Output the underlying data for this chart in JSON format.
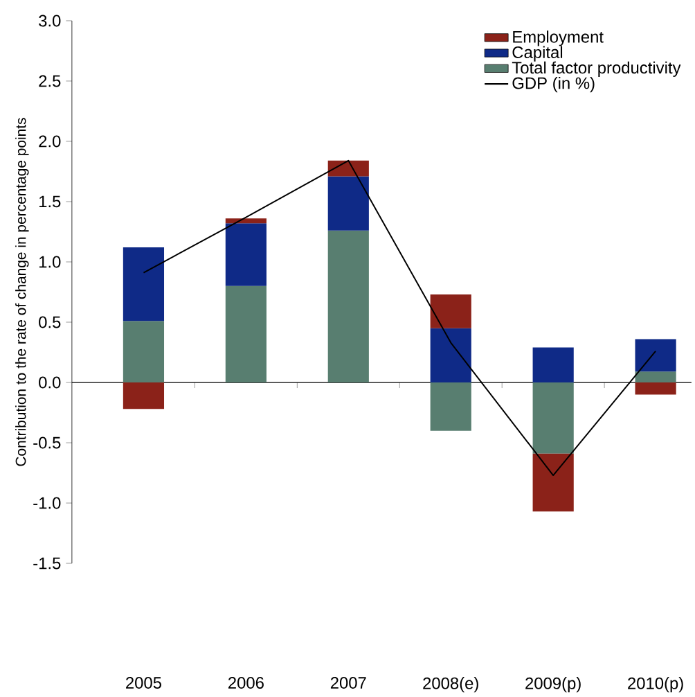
{
  "chart_data": {
    "type": "bar",
    "stacked": true,
    "ylabel": "Contribution to the rate of change in percentage points",
    "categories": [
      "2005",
      "2006",
      "2007",
      "2008(e)",
      "2009(p)",
      "2010(p)"
    ],
    "series": [
      {
        "name": "Total factor productivity",
        "color": "#587e70",
        "values": [
          0.51,
          0.8,
          1.26,
          -0.4,
          -0.59,
          0.09
        ]
      },
      {
        "name": "Capital",
        "color": "#0f2a87",
        "values": [
          0.61,
          0.52,
          0.45,
          0.45,
          0.29,
          0.27
        ]
      },
      {
        "name": "Employment",
        "color": "#8b2219",
        "values": [
          -0.22,
          0.04,
          0.13,
          0.28,
          -0.48,
          -0.1
        ]
      },
      {
        "name": "GDP (in %)",
        "type": "line",
        "color": "#000000",
        "values": [
          0.91,
          1.37,
          1.84,
          0.33,
          -0.77,
          0.26
        ]
      }
    ],
    "ylim": [
      -1.5,
      3.0
    ],
    "yticks": [
      {
        "value": -1.5,
        "label": "-1.5"
      },
      {
        "value": -1,
        "label": "-1.0"
      },
      {
        "value": -0.5,
        "label": "-0.5"
      },
      {
        "value": 0,
        "label": "0.0"
      },
      {
        "value": 0.5,
        "label": "0.5"
      },
      {
        "value": 1,
        "label": "1.0"
      },
      {
        "value": 1.5,
        "label": "1.5"
      },
      {
        "value": 2,
        "label": "2.0"
      },
      {
        "value": 2.5,
        "label": "2.5"
      },
      {
        "value": 3,
        "label": "3.0"
      }
    ],
    "legend": "top right"
  }
}
